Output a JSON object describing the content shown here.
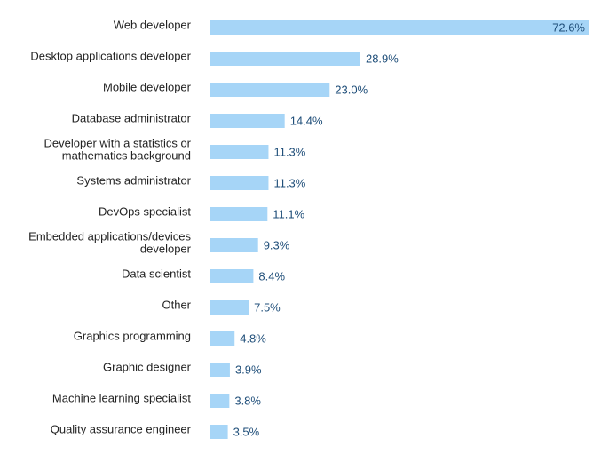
{
  "chart_data": {
    "type": "bar",
    "orientation": "horizontal",
    "title": "",
    "xlabel": "",
    "ylabel": "",
    "xlim": [
      0,
      72.6
    ],
    "grid": false,
    "legend": "none",
    "bar_color": "#a6d5f7",
    "label_color": "#222222",
    "value_label_color": "#1f4e79",
    "value_suffix": "%",
    "categories": [
      [
        "Web developer"
      ],
      [
        "Desktop applications developer"
      ],
      [
        "Mobile developer"
      ],
      [
        "Database administrator"
      ],
      [
        "Developer with a statistics or",
        "mathematics background"
      ],
      [
        "Systems administrator"
      ],
      [
        "DevOps specialist"
      ],
      [
        "Embedded applications/devices",
        "developer"
      ],
      [
        "Data scientist"
      ],
      [
        "Other"
      ],
      [
        "Graphics programming"
      ],
      [
        "Graphic designer"
      ],
      [
        "Machine learning specialist"
      ],
      [
        "Quality assurance engineer"
      ]
    ],
    "values": [
      72.6,
      28.9,
      23.0,
      14.4,
      11.3,
      11.3,
      11.1,
      9.3,
      8.4,
      7.5,
      4.8,
      3.9,
      3.8,
      3.5
    ]
  }
}
